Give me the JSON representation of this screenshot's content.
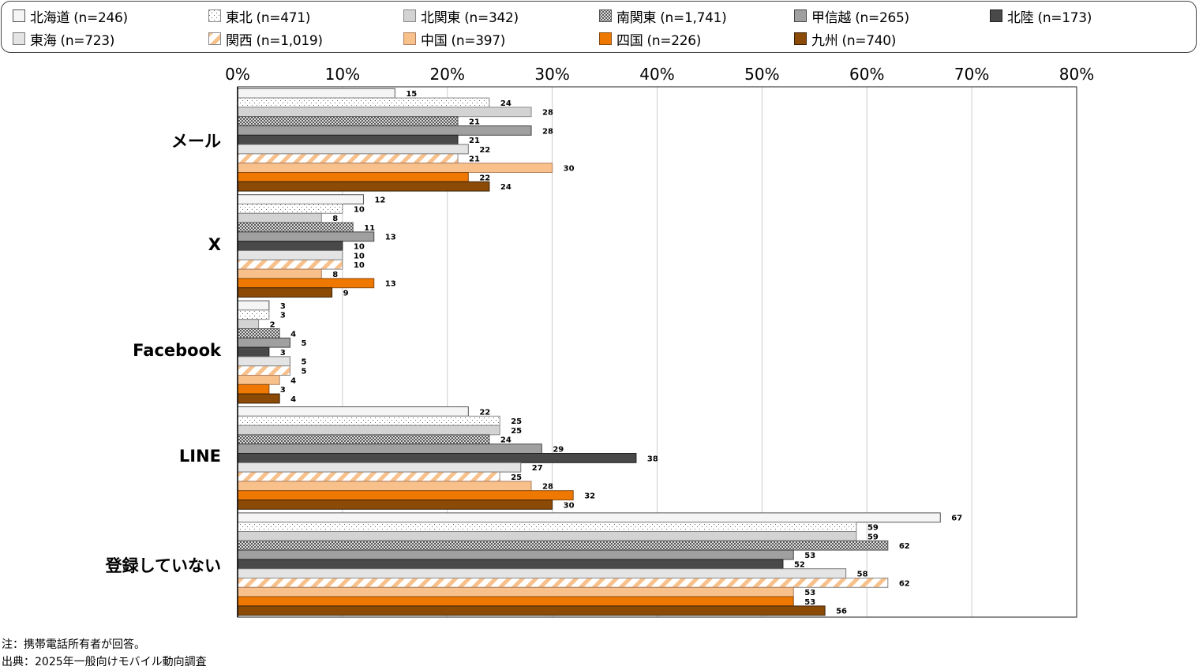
{
  "chart_data": {
    "type": "bar",
    "orientation": "horizontal",
    "title": "",
    "xlabel": "",
    "ylabel": "",
    "xlim": [
      0,
      80
    ],
    "x_ticks": [
      "0%",
      "10%",
      "20%",
      "30%",
      "40%",
      "50%",
      "60%",
      "70%",
      "80%"
    ],
    "grid": true,
    "legend_position": "top",
    "categories": [
      "メール",
      "X",
      "Facebook",
      "LINE",
      "登録していない"
    ],
    "series": [
      {
        "name": "北海道 (n=246)",
        "fill": "#f5f5f5",
        "stroke": "#555555",
        "pattern": "none",
        "values": [
          15,
          12,
          3,
          22,
          67
        ]
      },
      {
        "name": "東北 (n=471)",
        "fill": "#ffffff",
        "stroke": "#888888",
        "pattern": "dots",
        "values": [
          24,
          10,
          3,
          25,
          59
        ]
      },
      {
        "name": "北関東 (n=342)",
        "fill": "#d3d3d3",
        "stroke": "#888888",
        "pattern": "none",
        "values": [
          28,
          8,
          2,
          25,
          59
        ]
      },
      {
        "name": "南関東 (n=1,741)",
        "fill": "#555555",
        "stroke": "#555555",
        "pattern": "crosshatch",
        "values": [
          21,
          11,
          4,
          24,
          62
        ]
      },
      {
        "name": "甲信越 (n=265)",
        "fill": "#a0a0a0",
        "stroke": "#444444",
        "pattern": "none",
        "values": [
          28,
          13,
          5,
          29,
          53
        ]
      },
      {
        "name": "北陸 (n=173)",
        "fill": "#494949",
        "stroke": "#222222",
        "pattern": "none",
        "values": [
          21,
          10,
          3,
          38,
          52
        ]
      },
      {
        "name": "東海 (n=723)",
        "fill": "#e4e4e4",
        "stroke": "#777777",
        "pattern": "none",
        "values": [
          22,
          10,
          5,
          27,
          58
        ]
      },
      {
        "name": "関西 (n=1,019)",
        "fill": "#f8c08a",
        "stroke": "#888888",
        "pattern": "stripes",
        "values": [
          21,
          10,
          5,
          25,
          62
        ]
      },
      {
        "name": "中国 (n=397)",
        "fill": "#f8c08a",
        "stroke": "#b08060",
        "pattern": "none",
        "values": [
          30,
          8,
          4,
          28,
          53
        ]
      },
      {
        "name": "四国 (n=226)",
        "fill": "#ef7800",
        "stroke": "#8a4a10",
        "pattern": "none",
        "values": [
          22,
          13,
          3,
          32,
          53
        ]
      },
      {
        "name": "九州 (n=740)",
        "fill": "#8b4a06",
        "stroke": "#3a2005",
        "pattern": "none",
        "values": [
          24,
          9,
          4,
          30,
          56
        ]
      }
    ]
  },
  "notes": {
    "note": "注：携帯電話所有者が回答。",
    "source": "出典：2025年一般向けモバイル動向調査"
  }
}
